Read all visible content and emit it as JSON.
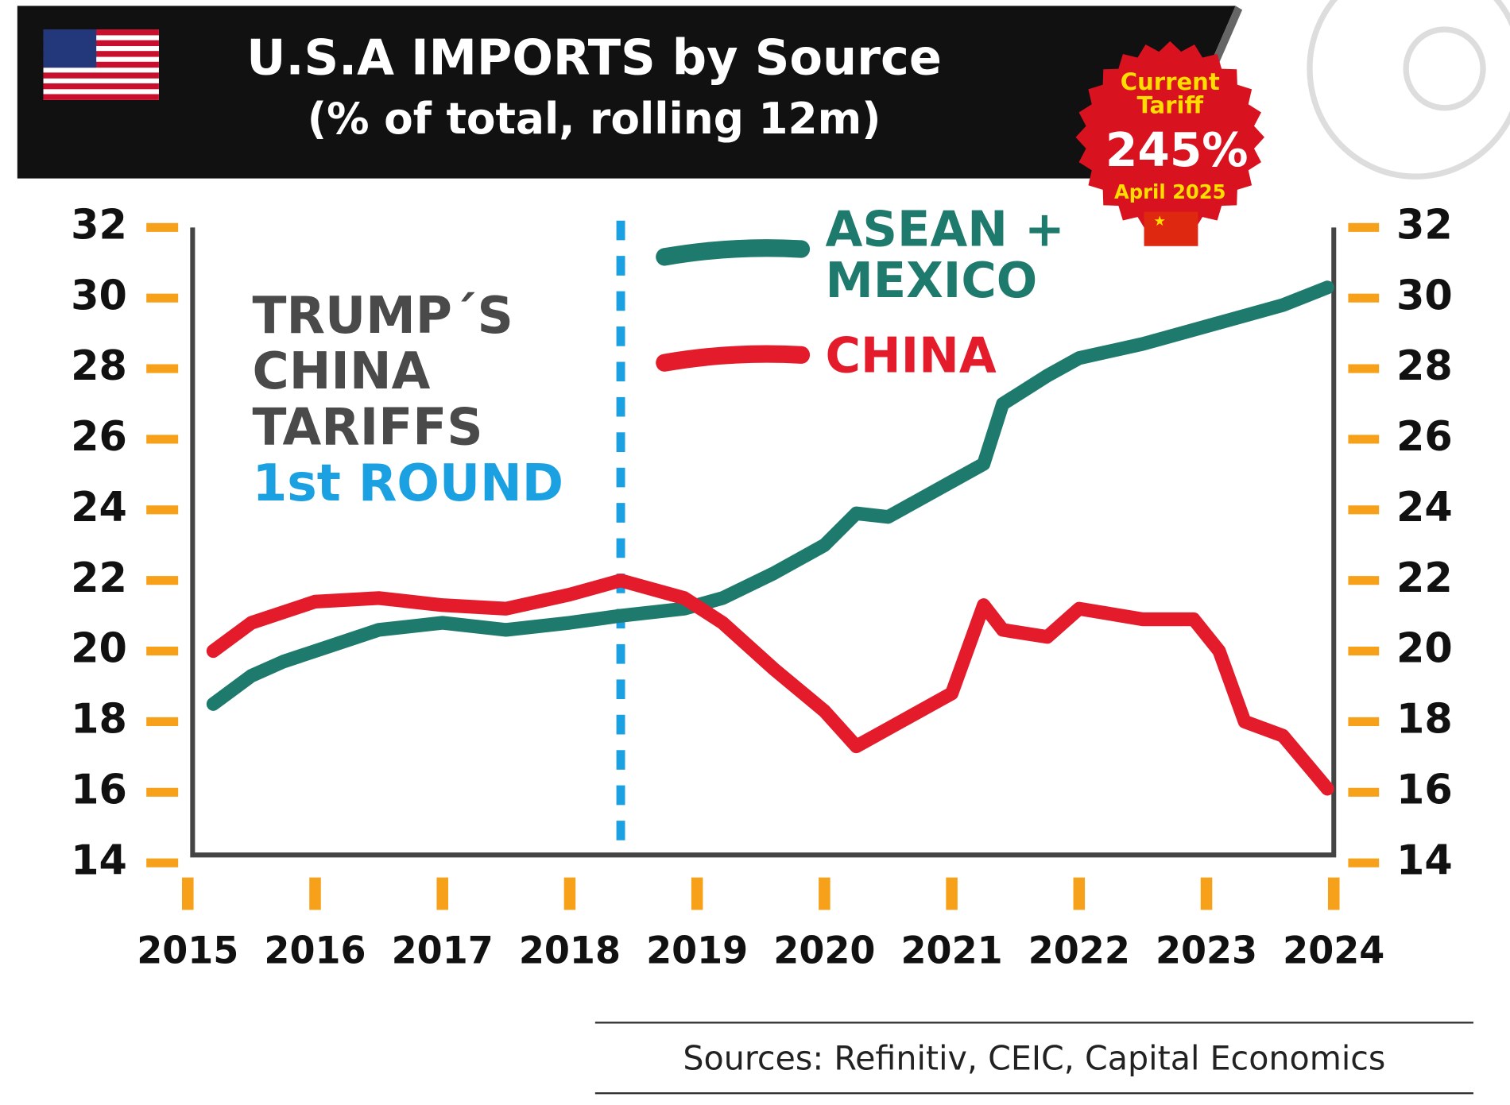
{
  "chart_data": {
    "type": "line",
    "title": "U.S.A IMPORTS by Source",
    "subtitle": "(% of total, rolling 12m)",
    "badge": {
      "label": "Current Tariff",
      "value": 245,
      "value_label": "245%",
      "date": "April 2025"
    },
    "annotation": {
      "lines": [
        "TRUMP´S",
        "CHINA",
        "TARIFFS"
      ],
      "highlight": "1st ROUND",
      "x": 2018.4
    },
    "x": [
      2015.2,
      2015.5,
      2015.75,
      2016,
      2016.5,
      2017,
      2017.5,
      2018,
      2018.4,
      2018.9,
      2019.2,
      2019.6,
      2020,
      2020.25,
      2020.5,
      2021,
      2021.25,
      2021.4,
      2021.75,
      2022,
      2022.5,
      2022.9,
      2023.1,
      2023.3,
      2023.6,
      2023.95
    ],
    "series": [
      {
        "name": "ASEAN + MEXICO",
        "color": "#1f7a6e",
        "values": [
          18.5,
          19.3,
          19.7,
          20.0,
          20.6,
          20.8,
          20.6,
          20.8,
          21.0,
          21.2,
          21.5,
          22.2,
          23.0,
          23.9,
          23.8,
          24.8,
          25.3,
          27.0,
          27.8,
          28.3,
          28.7,
          29.1,
          29.3,
          29.5,
          29.8,
          30.3
        ]
      },
      {
        "name": "CHINA",
        "color": "#e31b2b",
        "values": [
          20.0,
          20.8,
          21.1,
          21.4,
          21.5,
          21.3,
          21.2,
          21.6,
          22.0,
          21.5,
          20.8,
          19.5,
          18.3,
          17.3,
          17.8,
          18.8,
          21.3,
          20.6,
          20.4,
          21.2,
          20.9,
          20.9,
          20.0,
          18.0,
          17.6,
          16.1
        ]
      }
    ],
    "xlim": [
      2015,
      2024
    ],
    "xticks": [
      2015,
      2016,
      2017,
      2018,
      2019,
      2020,
      2021,
      2022,
      2023,
      2024
    ],
    "ylim": [
      14,
      32
    ],
    "yticks": [
      14,
      16,
      18,
      20,
      22,
      24,
      26,
      28,
      30,
      32
    ],
    "source": "Sources: Refinitiv, CEIC, Capital Economics"
  }
}
